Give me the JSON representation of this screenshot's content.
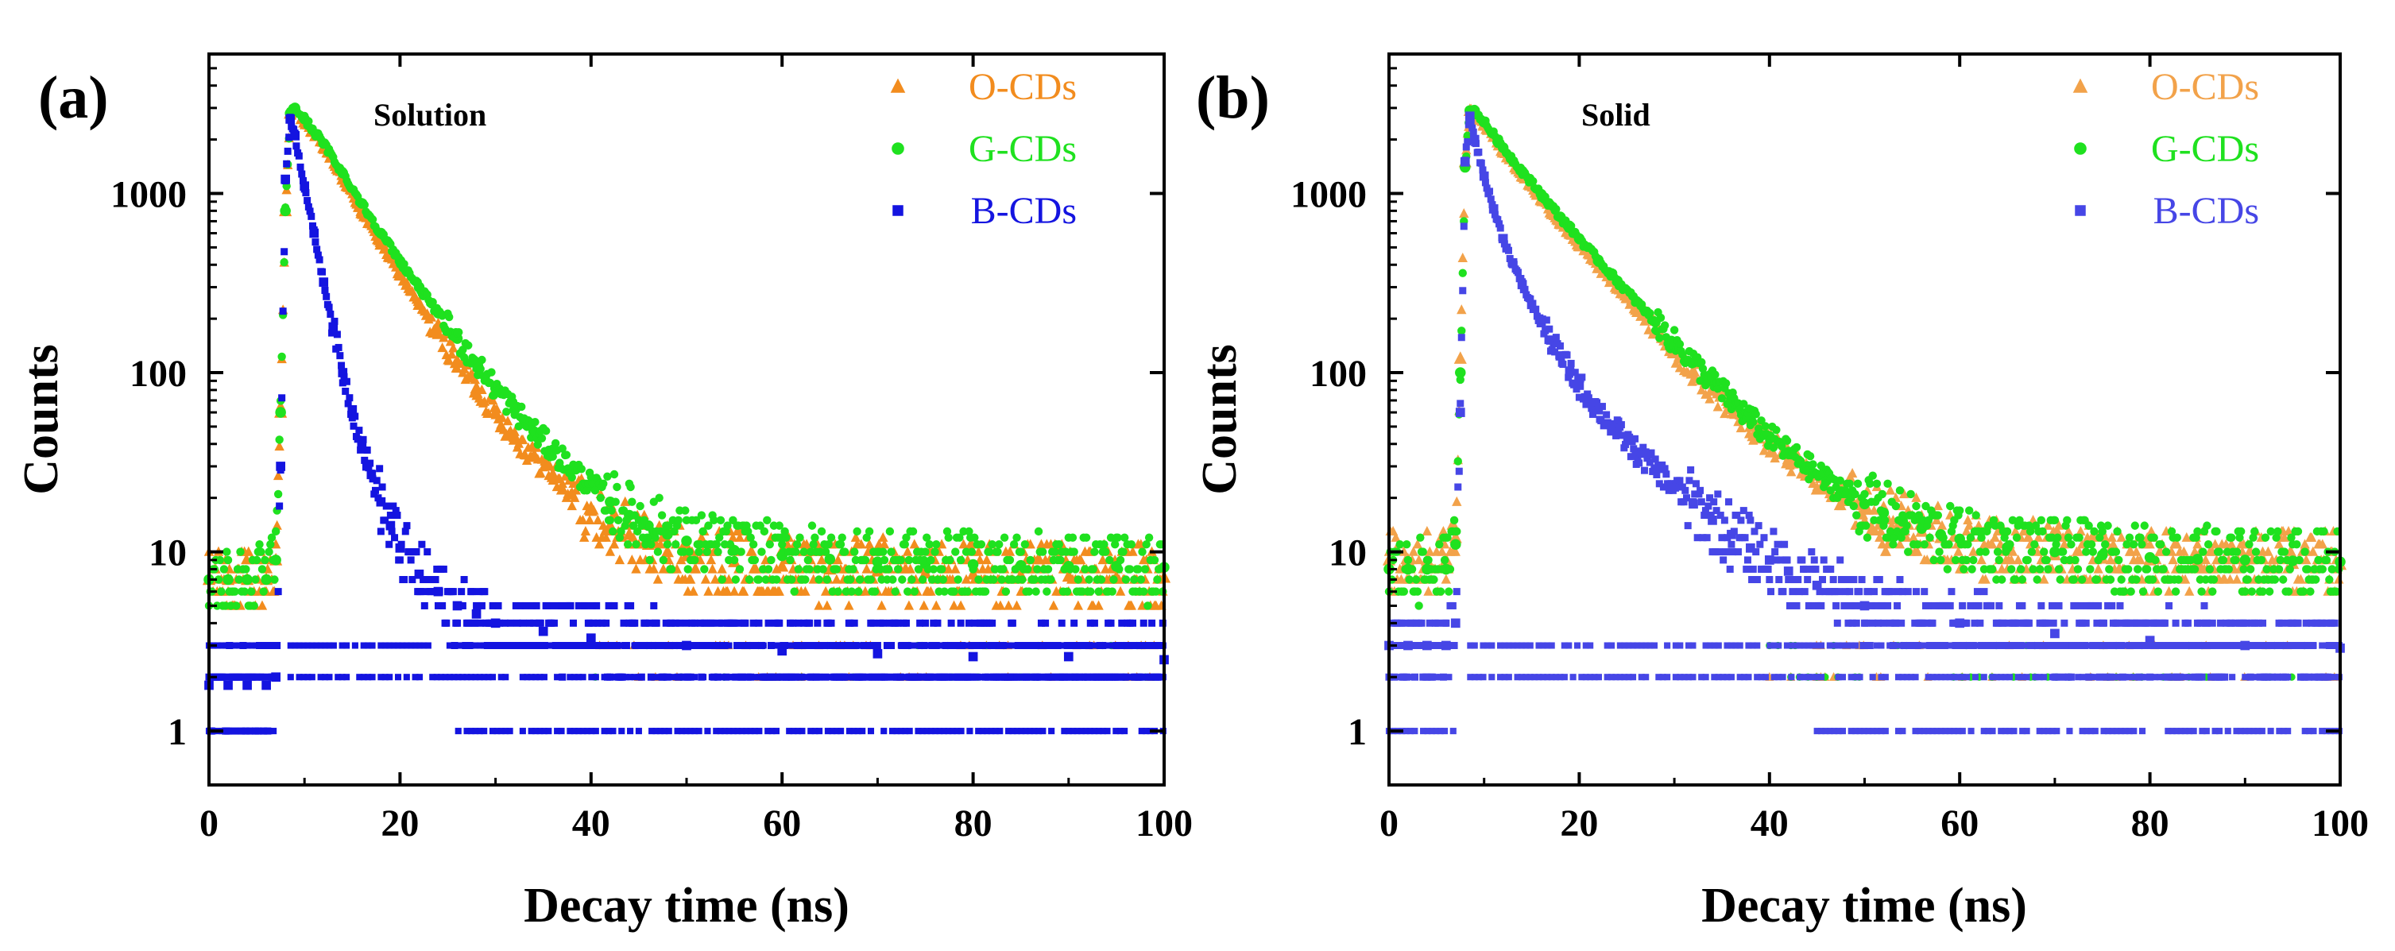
{
  "chart_data": [
    {
      "type": "scatter",
      "panel_label": "(a)",
      "title": "Solution",
      "xlabel": "Decay time (ns)",
      "ylabel": "Counts",
      "xlim": [
        0,
        100
      ],
      "ylim": [
        0.5,
        6000
      ],
      "yscale": "log",
      "xticks": [
        0,
        20,
        40,
        60,
        80,
        100
      ],
      "xtick_labels": [
        "0",
        "20",
        "40",
        "60",
        "80",
        "100"
      ],
      "yticks": [
        1,
        10,
        100,
        1000
      ],
      "ytick_labels": [
        "1",
        "10",
        "100",
        "1000"
      ],
      "legend_position": "top-right",
      "series": [
        {
          "name": "O-CDs",
          "color": "#f28c1e",
          "marker": "triangle",
          "x": [
            0,
            2,
            4,
            6,
            7,
            7.5,
            8,
            8.5,
            9,
            10,
            12,
            14,
            16,
            18,
            20,
            22,
            24,
            26,
            28,
            30,
            32,
            34,
            36,
            38,
            40,
            42,
            44,
            46,
            48,
            50,
            55,
            60,
            65,
            70,
            75,
            80,
            85,
            90,
            95,
            100
          ],
          "y": [
            7,
            7,
            7,
            7,
            9,
            60,
            800,
            2800,
            2900,
            2500,
            1800,
            1200,
            780,
            520,
            350,
            240,
            165,
            115,
            82,
            60,
            44,
            34,
            27,
            21,
            17,
            14,
            12.5,
            11,
            10,
            9.5,
            8.8,
            8.3,
            8,
            7.8,
            7.6,
            7.5,
            7.4,
            7.3,
            7.2,
            7.2
          ]
        },
        {
          "name": "G-CDs",
          "color": "#1fe11f",
          "marker": "circle",
          "x": [
            0,
            2,
            4,
            6,
            7,
            7.5,
            8,
            8.5,
            9,
            10,
            12,
            14,
            16,
            18,
            20,
            22,
            24,
            26,
            28,
            30,
            32,
            34,
            36,
            38,
            40,
            42,
            44,
            46,
            48,
            50,
            55,
            60,
            65,
            70,
            75,
            80,
            85,
            90,
            95,
            100
          ],
          "y": [
            7,
            7,
            7,
            7,
            9,
            60,
            800,
            2800,
            3000,
            2600,
            1900,
            1300,
            880,
            600,
            420,
            300,
            215,
            155,
            112,
            82,
            62,
            47,
            37,
            29,
            23.5,
            19,
            16,
            14,
            12.5,
            11.5,
            10.2,
            9.5,
            9.1,
            8.8,
            8.6,
            8.5,
            8.4,
            8.3,
            8.3,
            8.2
          ]
        },
        {
          "name": "B-CDs",
          "color": "#1414e0",
          "marker": "square",
          "x": [
            0,
            2,
            4,
            6,
            7,
            7.5,
            8,
            8.5,
            9,
            10,
            11,
            12,
            13,
            14,
            15,
            16,
            17,
            18,
            19,
            20,
            22,
            24,
            26,
            28,
            30,
            35,
            40,
            50,
            60,
            70,
            80,
            90,
            100
          ],
          "y": [
            1.8,
            1.8,
            1.8,
            1.8,
            2,
            30,
            1200,
            2600,
            2100,
            1100,
            600,
            320,
            180,
            100,
            62,
            40,
            27,
            19,
            14,
            10.5,
            7.5,
            6,
            5,
            4.5,
            4,
            3.6,
            3.3,
            3,
            2.8,
            2.7,
            2.6,
            2.6,
            2.5
          ]
        }
      ]
    },
    {
      "type": "scatter",
      "panel_label": "(b)",
      "title": "Solid",
      "xlabel": "Decay time (ns)",
      "ylabel": "Counts",
      "xlim": [
        0,
        100
      ],
      "ylim": [
        0.5,
        6000
      ],
      "yscale": "log",
      "xticks": [
        0,
        20,
        40,
        60,
        80,
        100
      ],
      "xtick_labels": [
        "0",
        "20",
        "40",
        "60",
        "80",
        "100"
      ],
      "yticks": [
        1,
        10,
        100,
        1000
      ],
      "ytick_labels": [
        "1",
        "10",
        "100",
        "1000"
      ],
      "legend_position": "top-right",
      "series": [
        {
          "name": "O-CDs",
          "color": "#f2a24a",
          "marker": "triangle",
          "x": [
            0,
            2,
            4,
            6,
            7,
            7.5,
            8,
            8.5,
            9,
            10,
            12,
            14,
            16,
            18,
            20,
            22,
            24,
            26,
            28,
            30,
            32,
            34,
            36,
            38,
            40,
            42,
            44,
            46,
            48,
            50,
            52,
            54,
            56,
            58,
            60,
            65,
            70,
            75,
            80,
            85,
            90,
            95,
            100
          ],
          "y": [
            9,
            9,
            9,
            9,
            12,
            120,
            1500,
            2900,
            2800,
            2400,
            1700,
            1250,
            920,
            680,
            510,
            385,
            295,
            225,
            172,
            132,
            102,
            80,
            63,
            50,
            40,
            33,
            27.5,
            23,
            20,
            17.5,
            15.5,
            14,
            13,
            12,
            11.2,
            10.2,
            9.6,
            9.2,
            9,
            8.8,
            8.7,
            8.6,
            8.5
          ]
        },
        {
          "name": "G-CDs",
          "color": "#1fe11f",
          "marker": "circle",
          "x": [
            0,
            2,
            4,
            6,
            7,
            7.5,
            8,
            8.5,
            9,
            10,
            12,
            14,
            16,
            18,
            20,
            22,
            24,
            26,
            28,
            30,
            32,
            34,
            36,
            38,
            40,
            42,
            44,
            46,
            48,
            50,
            52,
            54,
            56,
            58,
            60,
            65,
            70,
            75,
            80,
            85,
            90,
            95,
            100
          ],
          "y": [
            8,
            8,
            8,
            8,
            11,
            100,
            1400,
            2900,
            2900,
            2500,
            1800,
            1330,
            990,
            740,
            560,
            425,
            325,
            250,
            192,
            148,
            114,
            89,
            70,
            55,
            44,
            36,
            30,
            25,
            21.5,
            18.5,
            16.5,
            14.8,
            13.5,
            12.5,
            11.8,
            10.6,
            10,
            9.6,
            9.3,
            9.1,
            9,
            8.9,
            8.8
          ]
        },
        {
          "name": "B-CDs",
          "color": "#4646e6",
          "marker": "square",
          "x": [
            0,
            2,
            4,
            6,
            7,
            7.5,
            8,
            8.5,
            9,
            10,
            11,
            12,
            13,
            14,
            15,
            16,
            17,
            18,
            19,
            20,
            22,
            24,
            26,
            28,
            30,
            32,
            34,
            36,
            38,
            40,
            42,
            45,
            50,
            60,
            70,
            80,
            90,
            100
          ],
          "y": [
            3,
            3,
            3,
            3,
            4,
            60,
            1500,
            2700,
            2000,
            1250,
            820,
            560,
            410,
            310,
            240,
            190,
            152,
            124,
            102,
            85,
            62,
            47,
            36,
            29,
            23,
            18.5,
            15,
            12.5,
            10.5,
            9,
            7.8,
            6.5,
            5,
            4,
            3.5,
            3.2,
            3,
            2.9
          ]
        }
      ]
    }
  ]
}
